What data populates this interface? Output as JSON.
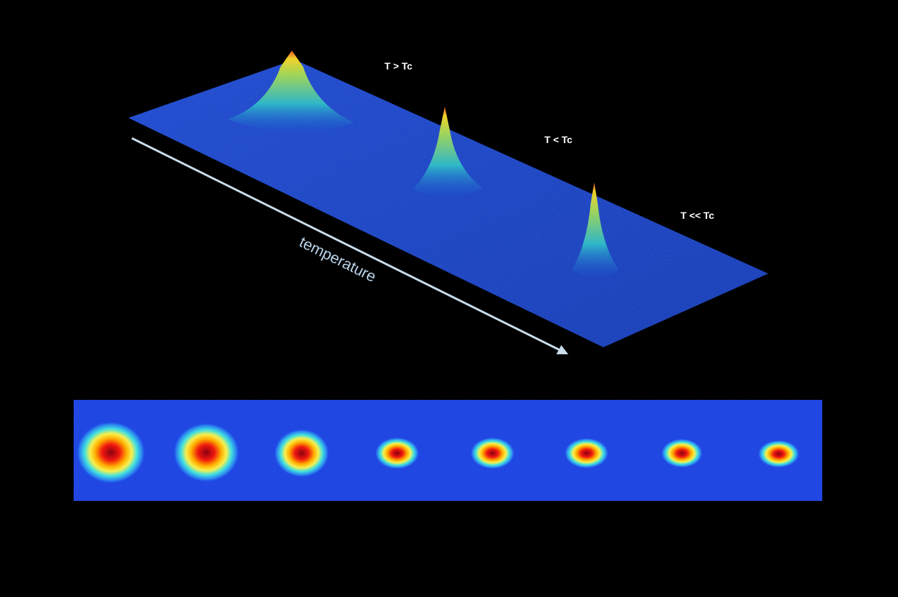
{
  "labels": [
    "T > Tc",
    "T < Tc",
    "T << Tc"
  ],
  "axis_label": "temperature"
}
